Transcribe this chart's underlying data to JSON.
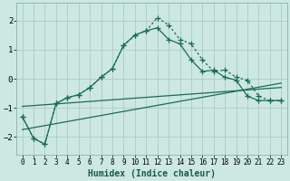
{
  "xlabel": "Humidex (Indice chaleur)",
  "bg_color": "#cce8e0",
  "grid_color": "#aaccC4",
  "line_color": "#1a6b5a",
  "xlim": [
    -0.5,
    23.5
  ],
  "ylim": [
    -2.6,
    2.6
  ],
  "yticks": [
    -2,
    -1,
    0,
    1,
    2
  ],
  "xticks": [
    0,
    1,
    2,
    3,
    4,
    5,
    6,
    7,
    8,
    9,
    10,
    11,
    12,
    13,
    14,
    15,
    16,
    17,
    18,
    19,
    20,
    21,
    22,
    23
  ],
  "line1_x": [
    0,
    1,
    2,
    3,
    4,
    5,
    6,
    7,
    8,
    9,
    10,
    11,
    12,
    13,
    14,
    15,
    16,
    17,
    18,
    19,
    20,
    21,
    22,
    23
  ],
  "line1_y": [
    -1.3,
    -2.05,
    -2.25,
    -0.85,
    -0.65,
    -0.55,
    -0.3,
    0.05,
    0.35,
    1.15,
    1.5,
    1.65,
    2.1,
    1.85,
    1.35,
    1.2,
    0.65,
    0.25,
    0.3,
    0.05,
    -0.05,
    -0.6,
    -0.75,
    -0.75
  ],
  "line2_x": [
    0,
    1,
    2,
    3,
    4,
    5,
    6,
    7,
    8,
    9,
    10,
    11,
    12,
    13,
    14,
    15,
    16,
    17,
    18,
    19,
    20,
    21,
    22,
    23
  ],
  "line2_y": [
    -1.3,
    -2.05,
    -2.25,
    -0.85,
    -0.65,
    -0.55,
    -0.3,
    0.05,
    0.35,
    1.15,
    1.5,
    1.65,
    1.75,
    1.35,
    1.2,
    0.65,
    0.25,
    0.3,
    0.05,
    -0.05,
    -0.6,
    -0.75,
    -0.75,
    -0.75
  ],
  "line3_x": [
    0,
    23
  ],
  "line3_y": [
    -0.95,
    -0.3
  ],
  "line4_x": [
    0,
    23
  ],
  "line4_y": [
    -1.75,
    -0.15
  ]
}
